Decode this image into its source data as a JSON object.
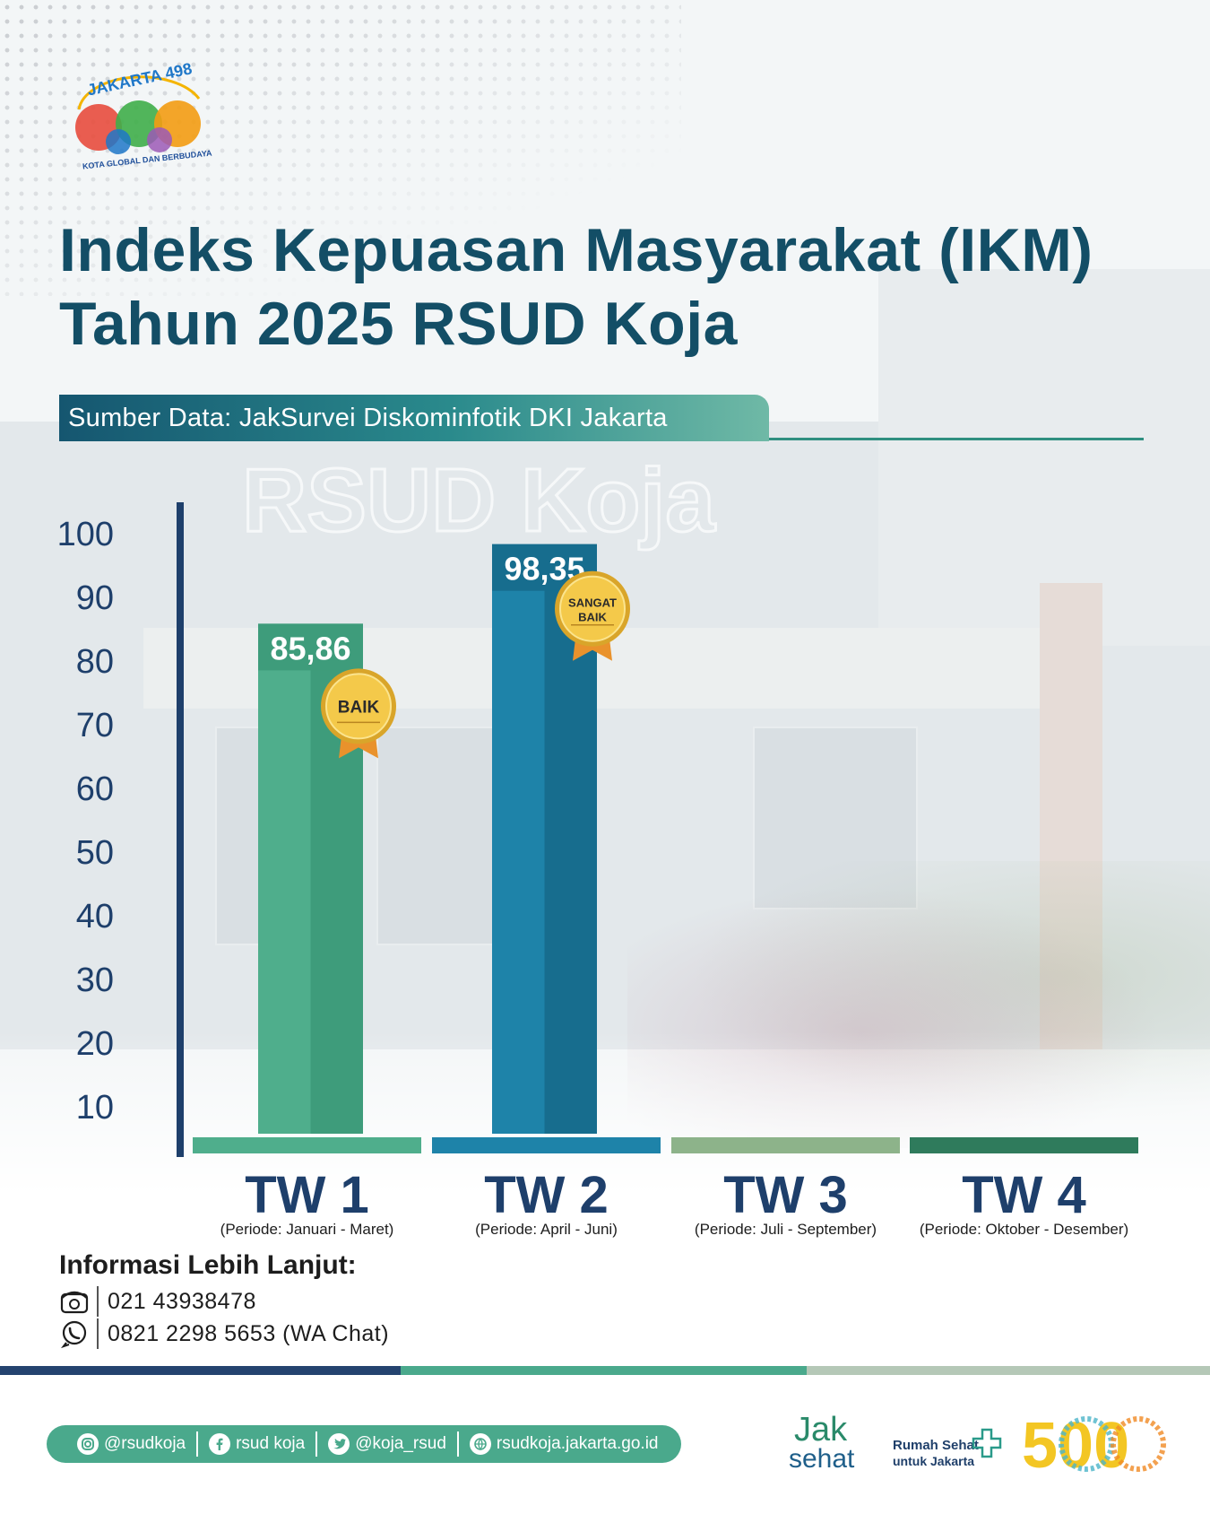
{
  "header": {
    "logo_text": "JAKARTA 498",
    "logo_tagline": "KOTA GLOBAL DAN BERBUDAYA",
    "title_line1": "Indeks Kepuasan Masyarakat (IKM)",
    "title_line2": "Tahun 2025 RSUD Koja",
    "source": "Sumber Data: JakSurvei Diskominfotik DKI Jakarta"
  },
  "background": {
    "watermark": "RSUD Koja"
  },
  "chart_data": {
    "type": "bar",
    "categories": [
      "TW 1",
      "TW 2",
      "TW 3",
      "TW 4"
    ],
    "periods": [
      "(Periode: Januari - Maret)",
      "(Periode: April - Juni)",
      "(Periode: Juli - September)",
      "(Periode: Oktober - Desember)"
    ],
    "values": [
      85.86,
      98.35,
      null,
      null
    ],
    "value_labels": [
      "85,86",
      "98,35",
      "",
      ""
    ],
    "badges": [
      "BAIK",
      "SANGAT BAIK",
      "",
      ""
    ],
    "ylim": [
      0,
      100
    ],
    "yticks": [
      10,
      20,
      30,
      40,
      50,
      60,
      70,
      80,
      90,
      100
    ],
    "bar_colors": [
      "#4fae8c",
      "#1e83a9",
      "#8db38a",
      "#2f7b5c"
    ],
    "bar_colors_dark": [
      "#3e9c7b",
      "#176d8e",
      "#7aa277",
      "#266a4e"
    ],
    "grid": false,
    "legend": "none"
  },
  "contact": {
    "title": "Informasi Lebih Lanjut:",
    "phone": "021 43938478",
    "wa": "0821 2298 5653 (WA Chat)"
  },
  "footer": {
    "instagram": "@rsudkoja",
    "facebook": "rsud koja",
    "twitter": "@koja_rsud",
    "website": "rsudkoja.jakarta.go.id",
    "jaksehat_line1": "Jak",
    "jaksehat_line2": "sehat",
    "rshj_line1": "Rumah Sehat",
    "rshj_line2": "untuk Jakarta",
    "anniversary": "500"
  },
  "colors": {
    "title": "#134e66",
    "axis": "#1e3f6b",
    "tick_text": "#1e3f6b",
    "category_text": "#1e3f6b",
    "stripe": [
      "#24436f",
      "#4aa98c",
      "#b5c8b7"
    ]
  }
}
